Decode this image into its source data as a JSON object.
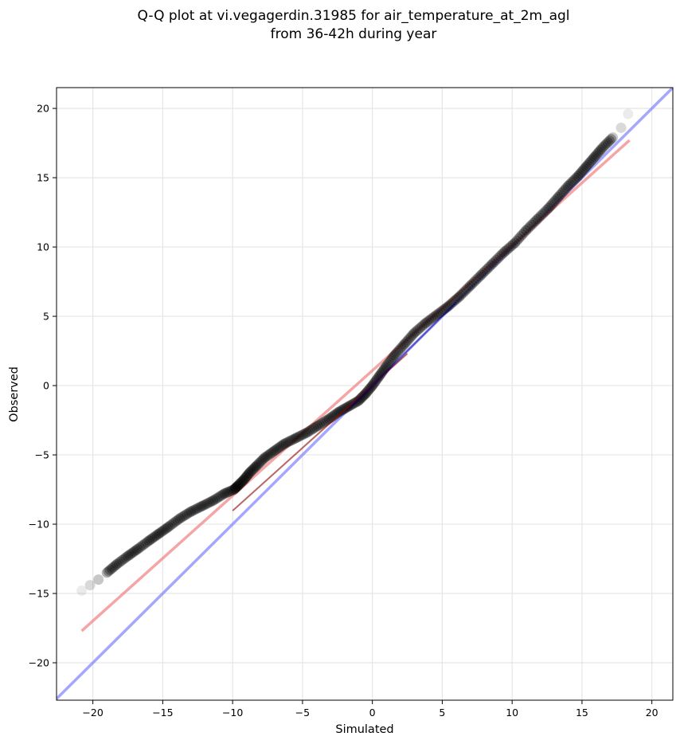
{
  "chart_data": {
    "type": "scatter",
    "title_lines": [
      "Q-Q plot at vi.vegagerdin.31985 for air_temperature_at_2m_agl",
      "from 36-42h during year"
    ],
    "xlabel": "Simulated",
    "ylabel": "Observed",
    "xlim": [
      -22.6,
      21.5
    ],
    "ylim": [
      -22.7,
      21.5
    ],
    "xticks": [
      -20,
      -15,
      -10,
      -5,
      0,
      5,
      10,
      15,
      20
    ],
    "yticks": [
      -20,
      -15,
      -10,
      -5,
      0,
      5,
      10,
      15,
      20
    ],
    "xtick_labels": [
      "−20",
      "−15",
      "−10",
      "−5",
      "0",
      "5",
      "10",
      "15",
      "20"
    ],
    "ytick_labels": [
      "−20",
      "−15",
      "−10",
      "−5",
      "0",
      "5",
      "10",
      "15",
      "20"
    ],
    "grid": true,
    "colors": {
      "points": "#000000",
      "fit_line": "#f08080",
      "identity_line": "#8080ff",
      "center_fit": "#8b0000",
      "center_identity": "#00008b"
    },
    "identity_line": {
      "x": [
        -22.6,
        21.5
      ],
      "y": [
        -22.6,
        21.5
      ]
    },
    "fit_line": {
      "x": [
        -20.8,
        18.4
      ],
      "y": [
        -17.7,
        17.7
      ]
    },
    "quantiles": {
      "x": [
        -20.8,
        -20.2,
        -19.6,
        -19.0,
        -18.3,
        -17.5,
        -16.8,
        -16.0,
        -15.3,
        -14.6,
        -13.8,
        -13.0,
        -12.2,
        -11.4,
        -10.6,
        -9.9,
        -9.6,
        -9.2,
        -8.8,
        -8.3,
        -7.7,
        -7.0,
        -6.3,
        -5.5,
        -4.7,
        -3.9,
        -3.1,
        -2.4,
        -1.7,
        -1.0,
        -0.5,
        0.0,
        0.5,
        1.0,
        1.6,
        2.3,
        3.0,
        3.8,
        4.6,
        5.4,
        6.2,
        7.0,
        7.8,
        8.6,
        9.4,
        10.2,
        11.0,
        11.8,
        12.6,
        13.3,
        14.0,
        14.7,
        15.3,
        15.9,
        16.5,
        17.2,
        17.8,
        18.3
      ],
      "y": [
        -14.8,
        -14.4,
        -14.0,
        -13.5,
        -12.9,
        -12.3,
        -11.8,
        -11.2,
        -10.7,
        -10.2,
        -9.6,
        -9.1,
        -8.7,
        -8.3,
        -7.8,
        -7.5,
        -7.2,
        -6.8,
        -6.3,
        -5.8,
        -5.2,
        -4.7,
        -4.2,
        -3.8,
        -3.4,
        -2.9,
        -2.4,
        -1.9,
        -1.5,
        -1.1,
        -0.6,
        0.0,
        0.7,
        1.4,
        2.2,
        3.0,
        3.8,
        4.5,
        5.1,
        5.7,
        6.4,
        7.2,
        8.0,
        8.8,
        9.6,
        10.3,
        11.2,
        12.0,
        12.8,
        13.6,
        14.4,
        15.1,
        15.8,
        16.5,
        17.2,
        17.9,
        18.6,
        19.6
      ]
    }
  }
}
